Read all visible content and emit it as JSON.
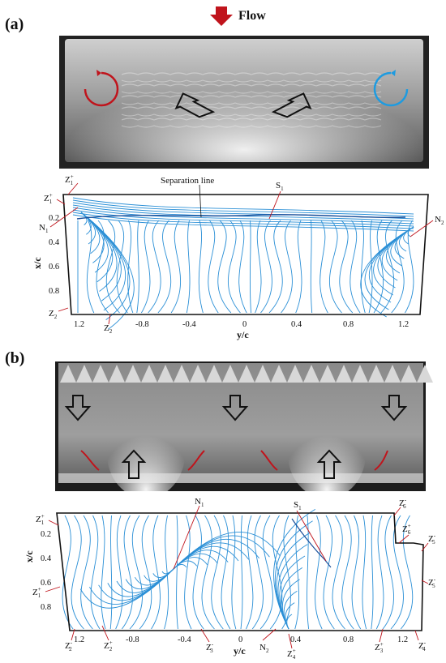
{
  "figure": {
    "panel_a_label": "(a)",
    "panel_b_label": "(b)",
    "flow_label": "Flow",
    "colors": {
      "streamline": "#2a8fd6",
      "red_arrow": "#c0141c",
      "blue_arrow": "#1e9be0",
      "annotation_line": "#c0141c"
    }
  },
  "panel_a": {
    "separation_label": "Separation line",
    "annotations": [
      {
        "id": "z1-plus-top",
        "base": "Z",
        "sub": "1",
        "sup": "+"
      },
      {
        "id": "z1-plus-side",
        "base": "Z",
        "sub": "1",
        "sup": "+"
      },
      {
        "id": "n1",
        "base": "N",
        "sub": "1",
        "sup": ""
      },
      {
        "id": "s1",
        "base": "S",
        "sub": "1",
        "sup": ""
      },
      {
        "id": "n2",
        "base": "N",
        "sub": "2",
        "sup": ""
      },
      {
        "id": "z2-bottom",
        "base": "Z",
        "sub": "2",
        "sup": ""
      },
      {
        "id": "z2-axis",
        "base": "Z",
        "sub": "2",
        "sup": ""
      }
    ],
    "xlabel": "y/c",
    "ylabel": "x/c",
    "xticks": [
      "1.2",
      "-0.8",
      "-0.4",
      "0",
      "0.4",
      "0.8",
      "1.2"
    ],
    "yticks": [
      "0.2",
      "0.4",
      "0.6",
      "0.8"
    ]
  },
  "panel_b": {
    "annotations": [
      {
        "id": "z1-top",
        "base": "Z",
        "sub": "1",
        "sup": "+"
      },
      {
        "id": "n1",
        "base": "N",
        "sub": "1",
        "sup": ""
      },
      {
        "id": "s1",
        "base": "S",
        "sub": "1",
        "sup": ""
      },
      {
        "id": "z6",
        "base": "Z",
        "sub": "6",
        "sup": "-"
      },
      {
        "id": "z6-plus",
        "base": "Z",
        "sub": "6",
        "sup": "+"
      },
      {
        "id": "z5-upper",
        "base": "Z",
        "sub": "5",
        "sup": "-"
      },
      {
        "id": "z5-lower",
        "base": "Z",
        "sub": "5",
        "sup": "-"
      },
      {
        "id": "z1-side",
        "base": "Z",
        "sub": "1",
        "sup": "+"
      },
      {
        "id": "z2",
        "base": "Z",
        "sub": "2",
        "sup": "-"
      },
      {
        "id": "z2-plus",
        "base": "Z",
        "sub": "2",
        "sup": "+"
      },
      {
        "id": "z3-minus",
        "base": "Z",
        "sub": "3",
        "sup": "-"
      },
      {
        "id": "n2",
        "base": "N",
        "sub": "2",
        "sup": ""
      },
      {
        "id": "z4-plus",
        "base": "Z",
        "sub": "4",
        "sup": "+"
      },
      {
        "id": "z3-plus",
        "base": "Z",
        "sub": "3",
        "sup": "+"
      },
      {
        "id": "z4",
        "base": "Z",
        "sub": "4",
        "sup": "-"
      }
    ],
    "xlabel": "y/c",
    "ylabel": "x/c",
    "xticks": [
      "1.2",
      "-0.8",
      "-0.4",
      "0",
      "0.4",
      "0.8",
      "1.2"
    ],
    "yticks": [
      "0.2",
      "0.4",
      "0.6",
      "0.8"
    ]
  }
}
